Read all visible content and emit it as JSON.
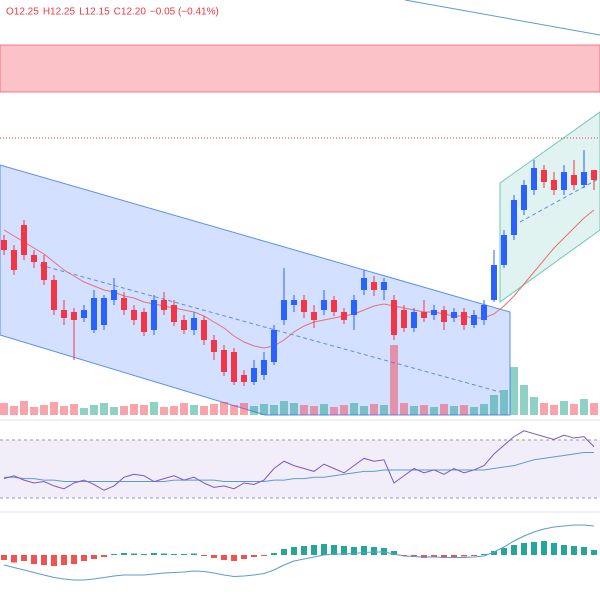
{
  "chart_data": {
    "type": "candlestick",
    "header": [
      "O12.25",
      "H12.25",
      "L12.15",
      "C12.20",
      "−0.05 (−0.41%)"
    ],
    "up_color": "#2962ff",
    "down_color": "#f23645",
    "ylim": [
      11.025,
      13.1
    ],
    "open": [
      11.9,
      11.85,
      11.975,
      11.825,
      11.79,
      11.7,
      11.55,
      11.54,
      11.51,
      11.45,
      11.475,
      11.6,
      11.61,
      11.55,
      11.54,
      11.45,
      11.6,
      11.575,
      11.5,
      11.45,
      11.5,
      11.4,
      11.35,
      11.34,
      11.225,
      11.19,
      11.225,
      11.29,
      11.5,
      11.575,
      11.6,
      11.54,
      11.55,
      11.6,
      11.54,
      11.525,
      11.65,
      11.69,
      11.65,
      11.6,
      11.55,
      11.46,
      11.54,
      11.525,
      11.55,
      11.51,
      11.54,
      11.475,
      11.5,
      11.6,
      11.775,
      11.925,
      12.05,
      12.15,
      12.25,
      12.2,
      12.15,
      12.225,
      12.175,
      12.25
    ],
    "high": [
      11.925,
      11.875,
      12.0,
      11.85,
      11.825,
      11.725,
      11.6,
      11.56,
      11.575,
      11.65,
      11.625,
      11.71,
      11.64,
      11.575,
      11.56,
      11.625,
      11.64,
      11.6,
      11.525,
      11.54,
      11.52,
      11.425,
      11.375,
      11.36,
      11.25,
      11.3,
      11.34,
      11.475,
      11.76,
      11.625,
      11.625,
      11.575,
      11.65,
      11.62,
      11.56,
      11.625,
      11.75,
      11.72,
      11.71,
      11.625,
      11.575,
      11.56,
      11.6,
      11.575,
      11.57,
      11.56,
      11.56,
      11.55,
      11.6,
      11.85,
      11.95,
      12.125,
      12.2,
      12.3,
      12.275,
      12.24,
      12.275,
      12.3,
      12.35,
      12.25
    ],
    "low": [
      11.825,
      11.725,
      11.8,
      11.76,
      11.675,
      11.525,
      11.475,
      11.3,
      11.49,
      11.435,
      11.45,
      11.575,
      11.525,
      11.475,
      11.42,
      11.425,
      11.525,
      11.47,
      11.43,
      11.425,
      11.375,
      11.3,
      11.22,
      11.175,
      11.17,
      11.175,
      11.2,
      11.275,
      11.475,
      11.54,
      11.51,
      11.46,
      11.525,
      11.52,
      11.48,
      11.45,
      11.625,
      11.62,
      11.6,
      11.4,
      11.44,
      11.44,
      11.49,
      11.5,
      11.45,
      11.49,
      11.45,
      11.46,
      11.475,
      11.59,
      11.76,
      11.9,
      12.025,
      12.125,
      12.16,
      12.125,
      12.125,
      12.15,
      12.16,
      12.15
    ],
    "close": [
      11.85,
      11.75,
      11.825,
      11.79,
      11.7,
      11.55,
      11.51,
      11.5,
      11.55,
      11.61,
      11.61,
      11.65,
      11.55,
      11.5,
      11.44,
      11.6,
      11.55,
      11.49,
      11.45,
      11.51,
      11.4,
      11.34,
      11.24,
      11.19,
      11.19,
      11.26,
      11.3,
      11.45,
      11.6,
      11.6,
      11.54,
      11.5,
      11.6,
      11.54,
      11.5,
      11.6,
      11.71,
      11.65,
      11.69,
      11.425,
      11.46,
      11.54,
      11.51,
      11.55,
      11.49,
      11.54,
      11.475,
      11.525,
      11.575,
      11.775,
      11.925,
      12.1,
      12.175,
      12.26,
      12.19,
      12.15,
      12.24,
      12.175,
      12.24,
      12.2
    ],
    "ma": [
      11.95,
      11.92,
      11.89,
      11.86,
      11.83,
      11.79,
      11.75,
      11.72,
      11.69,
      11.67,
      11.65,
      11.64,
      11.62,
      11.61,
      11.59,
      11.58,
      11.57,
      11.56,
      11.55,
      11.54,
      11.52,
      11.49,
      11.46,
      11.42,
      11.39,
      11.37,
      11.36,
      11.37,
      11.4,
      11.44,
      11.47,
      11.49,
      11.5,
      11.51,
      11.52,
      11.53,
      11.55,
      11.57,
      11.58,
      11.57,
      11.56,
      11.55,
      11.54,
      11.54,
      11.53,
      11.52,
      11.52,
      11.51,
      11.51,
      11.53,
      11.57,
      11.62,
      11.68,
      11.74,
      11.8,
      11.86,
      11.91,
      11.96,
      12.01,
      12.05
    ],
    "ma_color": "#e57373",
    "volume_ylim": [
      0,
      100
    ],
    "volume": [
      12,
      9,
      14,
      8,
      10,
      13,
      9,
      11,
      7,
      10,
      12,
      8,
      9,
      11,
      10,
      13,
      8,
      9,
      12,
      10,
      9,
      11,
      13,
      10,
      12,
      9,
      11,
      10,
      14,
      12,
      10,
      9,
      11,
      8,
      10,
      12,
      9,
      11,
      10,
      70,
      12,
      9,
      10,
      8,
      11,
      9,
      10,
      8,
      11,
      20,
      25,
      48,
      30,
      18,
      12,
      10,
      14,
      11,
      16,
      12
    ],
    "rsi_ylim": [
      20,
      80
    ],
    "rsi": [
      43,
      45,
      42,
      40,
      41,
      38,
      36,
      40,
      42,
      39,
      35,
      38,
      44,
      46,
      45,
      41,
      43,
      45,
      42,
      44,
      40,
      37,
      38,
      36,
      40,
      39,
      42,
      50,
      55,
      52,
      50,
      48,
      53,
      50,
      47,
      52,
      57,
      55,
      56,
      40,
      45,
      50,
      47,
      49,
      46,
      50,
      47,
      49,
      52,
      60,
      66,
      72,
      76,
      74,
      72,
      70,
      73,
      71,
      72,
      65
    ],
    "rsi_ma": [
      44,
      44,
      43,
      43,
      42,
      42,
      41,
      41,
      41,
      41,
      41,
      41,
      41,
      41,
      41,
      41,
      41,
      42,
      42,
      42,
      42,
      42,
      41,
      41,
      41,
      41,
      41,
      42,
      42,
      43,
      43,
      44,
      44,
      45,
      46,
      47,
      48,
      48,
      49,
      49,
      49,
      49,
      49,
      49,
      49,
      49,
      49,
      49,
      49,
      50,
      51,
      52,
      54,
      56,
      57,
      58,
      59,
      60,
      61,
      61
    ],
    "rsi_color": "#7e57c2",
    "rsi_ma_color": "#5b9bd5",
    "macd_ylim": [
      -0.08,
      0.08
    ],
    "macd_hist": [
      -0.01,
      -0.015,
      -0.012,
      -0.018,
      -0.02,
      -0.022,
      -0.02,
      -0.018,
      -0.012,
      -0.008,
      -0.004,
      0.002,
      0.004,
      0.003,
      0.002,
      0.004,
      0.003,
      0.002,
      0.002,
      0.003,
      -0.002,
      -0.006,
      -0.01,
      -0.012,
      -0.008,
      -0.004,
      -0.002,
      0.004,
      0.012,
      0.016,
      0.018,
      0.02,
      0.022,
      0.02,
      0.018,
      0.016,
      0.018,
      0.016,
      0.014,
      0.008,
      -0.002,
      -0.004,
      -0.006,
      -0.004,
      -0.006,
      -0.004,
      -0.003,
      -0.002,
      0.002,
      0.008,
      0.014,
      0.02,
      0.024,
      0.026,
      0.028,
      0.024,
      0.02,
      0.018,
      0.016,
      0.01
    ],
    "macd": [
      -0.02,
      -0.025,
      -0.03,
      -0.035,
      -0.04,
      -0.045,
      -0.048,
      -0.05,
      -0.05,
      -0.048,
      -0.045,
      -0.042,
      -0.04,
      -0.04,
      -0.04,
      -0.038,
      -0.036,
      -0.035,
      -0.034,
      -0.032,
      -0.033,
      -0.036,
      -0.04,
      -0.043,
      -0.042,
      -0.04,
      -0.037,
      -0.03,
      -0.02,
      -0.012,
      -0.008,
      -0.004,
      0,
      0.002,
      0.002,
      0.003,
      0.005,
      0.006,
      0.006,
      0.002,
      -0.002,
      -0.003,
      -0.004,
      -0.004,
      -0.005,
      -0.005,
      -0.005,
      -0.004,
      -0.002,
      0.006,
      0.016,
      0.028,
      0.038,
      0.046,
      0.052,
      0.056,
      0.058,
      0.06,
      0.06,
      0.058
    ],
    "macd_color": "#5b9bd5"
  }
}
